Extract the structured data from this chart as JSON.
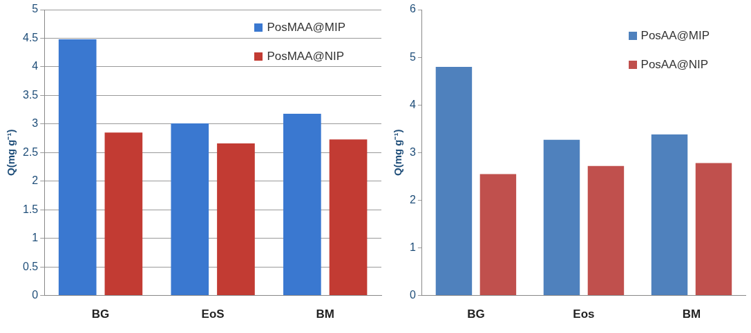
{
  "chart_data": [
    {
      "type": "bar",
      "ylabel": "Q(mg g⁻¹)",
      "categories": [
        "BG",
        "EoS",
        "BM"
      ],
      "series": [
        {
          "name": "PosMAA@MIP",
          "color": "#3a78d0",
          "values": [
            4.48,
            3.01,
            3.18
          ]
        },
        {
          "name": "PosMAA@NIP",
          "color": "#c23b33",
          "values": [
            2.85,
            2.66,
            2.73
          ]
        }
      ],
      "ylim": [
        0,
        5
      ],
      "yticks": [
        0,
        0.5,
        1,
        1.5,
        2,
        2.5,
        3,
        3.5,
        4,
        4.5,
        5
      ],
      "grid": "y",
      "legend": "top right"
    },
    {
      "type": "bar",
      "ylabel": "Q(mg g⁻¹)",
      "categories": [
        "BG",
        "Eos",
        "BM"
      ],
      "series": [
        {
          "name": "PosAA@MIP",
          "color": "#4f81bd",
          "values": [
            4.8,
            3.27,
            3.38
          ]
        },
        {
          "name": "PosAA@NIP",
          "color": "#c0504d",
          "values": [
            2.55,
            2.72,
            2.78
          ]
        }
      ],
      "ylim": [
        0,
        6
      ],
      "yticks": [
        0,
        1,
        2,
        3,
        4,
        5,
        6
      ],
      "grid": false,
      "legend": "top right"
    }
  ]
}
